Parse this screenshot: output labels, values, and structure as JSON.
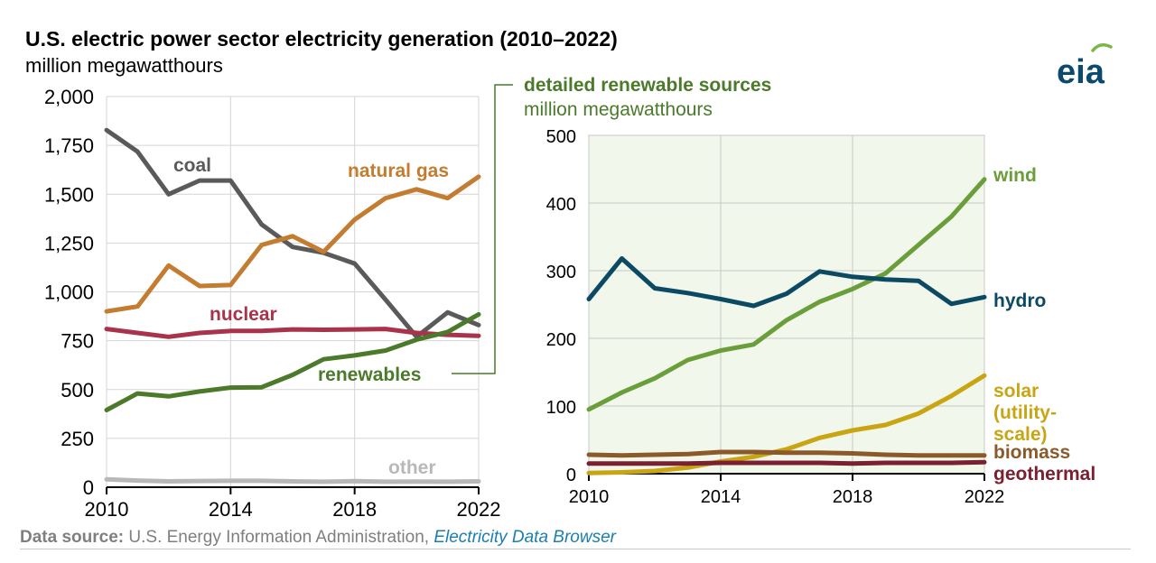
{
  "header": {
    "title": "U.S. electric power sector electricity generation (2010–2022)",
    "subtitle": "million megawatthours"
  },
  "logo": {
    "text": "eia",
    "icon": "eia-logo-icon",
    "color": "#0b4a6e",
    "arc_color": "#7ab648"
  },
  "source": {
    "label": "Data source:",
    "text": "U.S. Energy Information Administration,",
    "link": "Electricity Data Browser"
  },
  "chart_data": [
    {
      "type": "line",
      "title": "",
      "ylabel": "million megawatthours",
      "x": [
        2010,
        2011,
        2012,
        2013,
        2014,
        2015,
        2016,
        2017,
        2018,
        2019,
        2020,
        2021,
        2022
      ],
      "xticks": [
        "2010",
        "2014",
        "2018",
        "2022"
      ],
      "ylim": [
        0,
        2000
      ],
      "yticks": [
        "0",
        "250",
        "500",
        "750",
        "1,000",
        "1,250",
        "1,500",
        "1,750",
        "2,000"
      ],
      "grid": true,
      "series": [
        {
          "name": "coal",
          "color": "#5a5a5a",
          "values": [
            1828,
            1718,
            1500,
            1570,
            1570,
            1345,
            1230,
            1200,
            1145,
            960,
            770,
            895,
            830
          ]
        },
        {
          "name": "natural gas",
          "color": "#c47c30",
          "values": [
            900,
            925,
            1135,
            1030,
            1035,
            1240,
            1285,
            1205,
            1370,
            1480,
            1525,
            1480,
            1590
          ]
        },
        {
          "name": "nuclear",
          "color": "#a8334a",
          "values": [
            810,
            790,
            770,
            790,
            800,
            800,
            808,
            806,
            808,
            810,
            790,
            780,
            775
          ]
        },
        {
          "name": "renewables",
          "color": "#4a7a2a",
          "values": [
            395,
            480,
            465,
            490,
            510,
            512,
            575,
            655,
            675,
            700,
            755,
            795,
            885
          ]
        },
        {
          "name": "other",
          "color": "#b8b8b8",
          "values": [
            40,
            34,
            30,
            32,
            33,
            33,
            30,
            28,
            31,
            28,
            29,
            28,
            30
          ]
        }
      ]
    },
    {
      "type": "line",
      "title": "detailed renewable sources",
      "ylabel": "million megawatthours",
      "x": [
        2010,
        2011,
        2012,
        2013,
        2014,
        2015,
        2016,
        2017,
        2018,
        2019,
        2020,
        2021,
        2022
      ],
      "xticks": [
        "2010",
        "2014",
        "2018",
        "2022"
      ],
      "ylim": [
        0,
        500
      ],
      "yticks": [
        "0",
        "100",
        "200",
        "300",
        "400",
        "500"
      ],
      "grid": true,
      "background": "#f1f7ea",
      "series": [
        {
          "name": "wind",
          "color": "#6a9e3a",
          "values": [
            95,
            120,
            141,
            168,
            182,
            191,
            227,
            254,
            273,
            296,
            338,
            380,
            435
          ]
        },
        {
          "name": "hydro",
          "color": "#0c4a64",
          "values": [
            258,
            318,
            274,
            267,
            258,
            248,
            266,
            299,
            291,
            287,
            285,
            251,
            261
          ]
        },
        {
          "name": "solar (utility-scale)",
          "label_lines": [
            "solar",
            "(utility-",
            "scale)"
          ],
          "color": "#c9a514",
          "values": [
            1,
            2,
            4,
            9,
            18,
            25,
            36,
            53,
            64,
            72,
            89,
            115,
            145
          ]
        },
        {
          "name": "biomass",
          "color": "#8b5a2b",
          "values": [
            28,
            27,
            28,
            29,
            32,
            32,
            31,
            31,
            30,
            28,
            27,
            27,
            27
          ]
        },
        {
          "name": "geothermal",
          "color": "#7a2030",
          "values": [
            15,
            15,
            15,
            15,
            16,
            16,
            16,
            16,
            15,
            16,
            16,
            16,
            17
          ]
        }
      ]
    }
  ]
}
